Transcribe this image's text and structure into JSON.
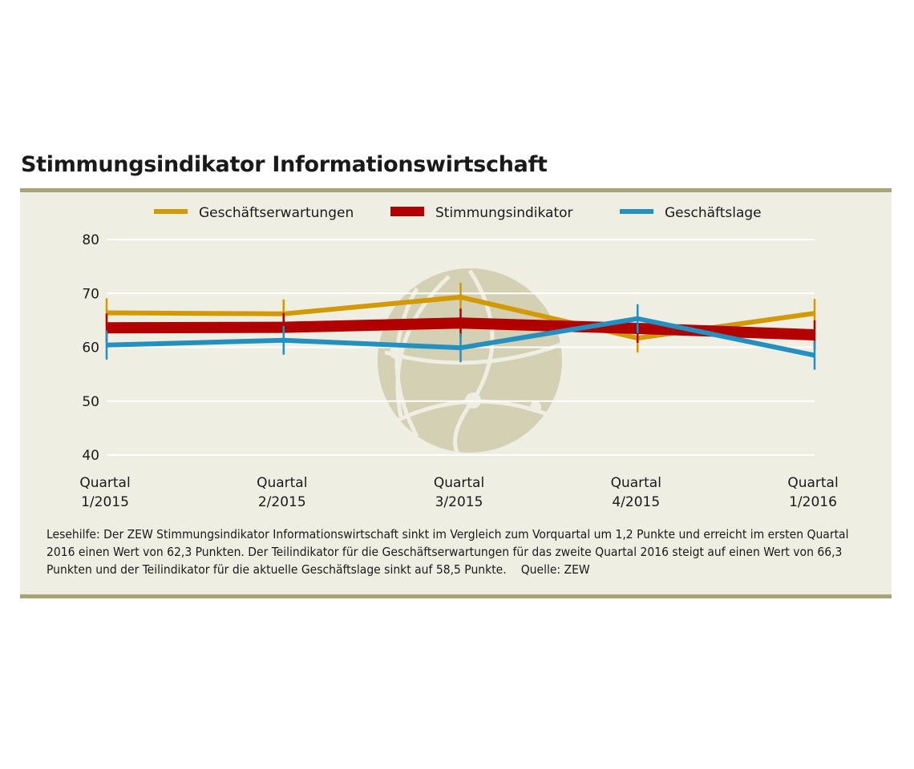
{
  "title": "Stimmungsindikator Informationswirtschaft",
  "chart_data": {
    "type": "line",
    "title": "Stimmungsindikator Informationswirtschaft",
    "categories": [
      [
        "Quartal",
        "1/2015"
      ],
      [
        "Quartal",
        "2/2015"
      ],
      [
        "Quartal",
        "3/2015"
      ],
      [
        "Quartal",
        "4/2015"
      ],
      [
        "Quartal",
        "1/2016"
      ]
    ],
    "ylim": [
      40,
      80
    ],
    "yticks": [
      40,
      50,
      60,
      70,
      80
    ],
    "grid": true,
    "legend_position": "top",
    "series": [
      {
        "name": "Geschäftserwartungen",
        "color": "#d29a00",
        "values": [
          66.4,
          66.2,
          69.3,
          61.7,
          66.3
        ]
      },
      {
        "name": "Stimmungsindikator",
        "color": "#b00000",
        "values": [
          63.6,
          63.7,
          64.5,
          63.5,
          62.3
        ]
      },
      {
        "name": "Geschäftslage",
        "color": "#2490c0",
        "values": [
          60.4,
          61.3,
          59.9,
          65.3,
          58.5
        ]
      }
    ]
  },
  "note": "Lesehilfe: Der ZEW Stimmungsindikator Informationswirtschaft sinkt im Vergleich zum Vorquartal um 1,2 Punkte und erreicht im ersten Quartal 2016 einen Wert von 62,3 Punkten. Der Teilindikator für die Geschäftserwartungen für das zweite Quartal 2016 steigt auf einen Wert von 66,3 Punkten und der Teilindikator für die aktuelle Geschäftslage sinkt auf 58,5 Punkte.",
  "source": "Quelle: ZEW"
}
